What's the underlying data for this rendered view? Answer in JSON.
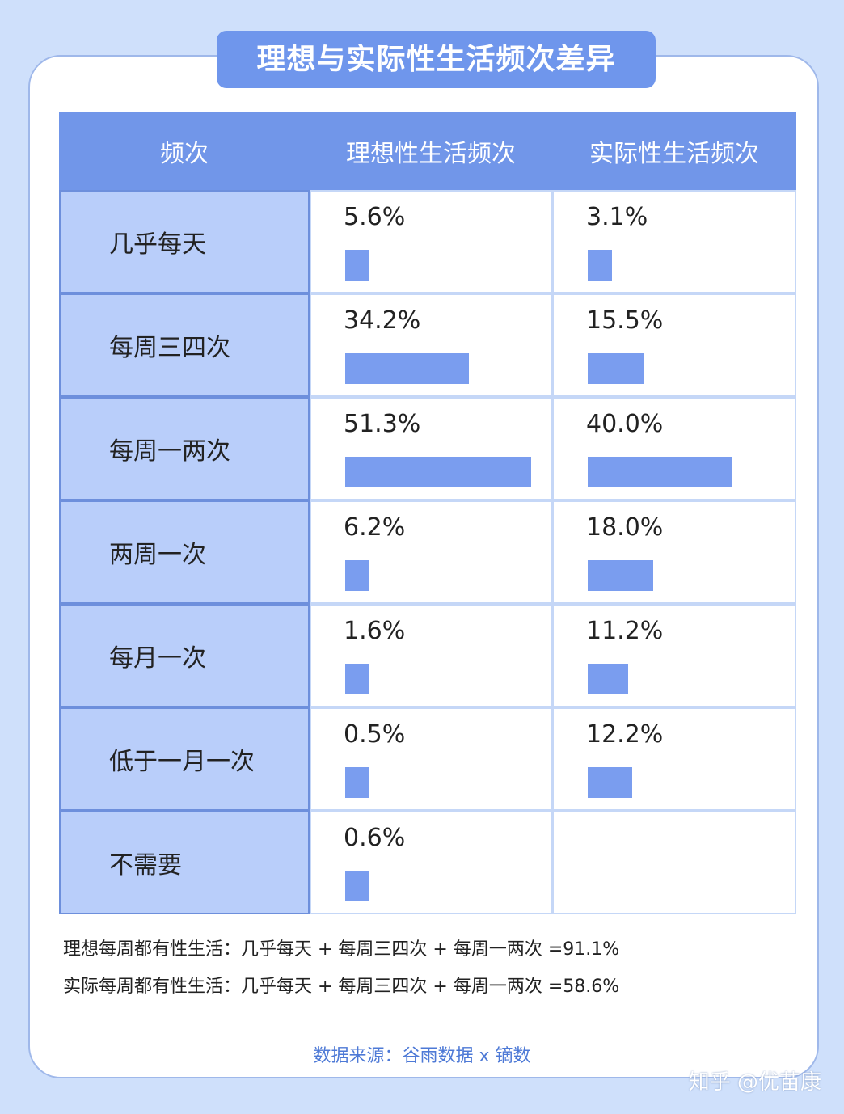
{
  "title": "理想与实际性生活频次差异",
  "chart_data": {
    "type": "table",
    "columns": [
      "频次",
      "理想性生活频次",
      "实际性生活频次"
    ],
    "categories": [
      "几乎每天",
      "每周三四次",
      "每周一两次",
      "两周一次",
      "每月一次",
      "低于一月一次",
      "不需要"
    ],
    "series": [
      {
        "name": "理想性生活频次",
        "values": [
          5.6,
          34.2,
          51.3,
          6.2,
          1.6,
          0.5,
          0.6
        ],
        "labels": [
          "5.6%",
          "34.2%",
          "51.3%",
          "6.2%",
          "1.6%",
          "0.5%",
          "0.6%"
        ]
      },
      {
        "name": "实际性生活频次",
        "values": [
          3.1,
          15.5,
          40.0,
          18.0,
          11.2,
          12.2,
          null
        ],
        "labels": [
          "3.1%",
          "15.5%",
          "40.0%",
          "18.0%",
          "11.2%",
          "12.2%",
          ""
        ]
      }
    ]
  },
  "notes": [
    "理想每周都有性生活：几乎每天 + 每周三四次 + 每周一两次 =91.1%",
    "实际每周都有性生活：几乎每天 + 每周三四次 + 每周一两次 =58.6%"
  ],
  "source": "数据来源：谷雨数据 x 镝数",
  "watermark": "知乎 @优苗康",
  "brand_watermark": "优苗康",
  "colors": {
    "header": "#7196e9",
    "label_bg": "#b9cefa",
    "bar": "#7a9def",
    "page_bg": "#cfe0fb"
  }
}
